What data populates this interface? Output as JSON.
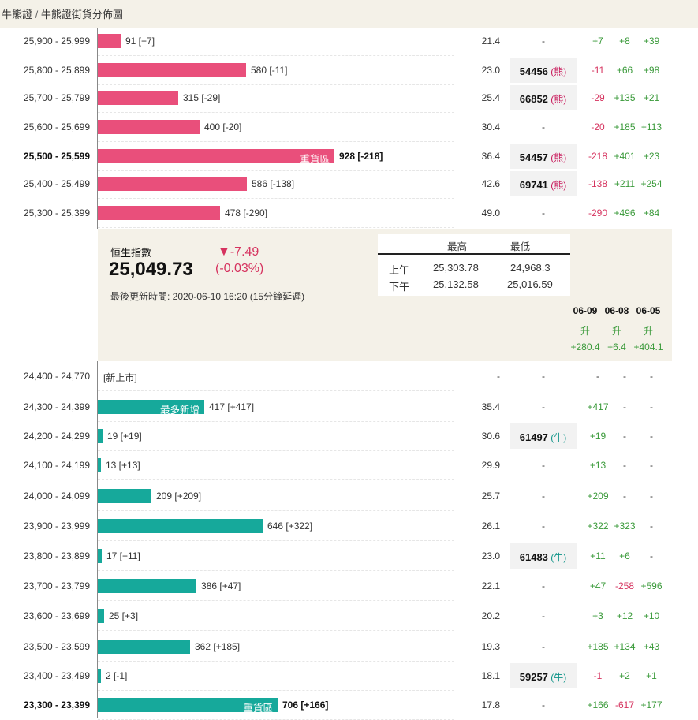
{
  "breadcrumb": {
    "part1": "牛熊證",
    "sep": "/",
    "part2": "牛熊證街貨分佈圖"
  },
  "colors": {
    "bear": "#e94f7b",
    "bull": "#16a99b",
    "positive": "#3a9a3a",
    "negative": "#d6335f",
    "panel": "#f4f1e8"
  },
  "bear_rows": [
    {
      "range": "25,900 - 25,999",
      "amount": 91,
      "count_label": "91 [+7]",
      "bar_text": "",
      "bold": false,
      "value": "21.4",
      "code": "-",
      "code_type": "",
      "c1": "+7",
      "c2": "+8",
      "c3": "+39"
    },
    {
      "range": "25,800 - 25,899",
      "amount": 580,
      "count_label": "580 [-11]",
      "bar_text": "",
      "bold": false,
      "value": "23.0",
      "code": "54456",
      "code_type": "熊",
      "c1": "-11",
      "c2": "+66",
      "c3": "+98"
    },
    {
      "range": "25,700 - 25,799",
      "amount": 315,
      "count_label": "315 [-29]",
      "bar_text": "",
      "bold": false,
      "value": "25.4",
      "code": "66852",
      "code_type": "熊",
      "c1": "-29",
      "c2": "+135",
      "c3": "+21"
    },
    {
      "range": "25,600 - 25,699",
      "amount": 400,
      "count_label": "400 [-20]",
      "bar_text": "",
      "bold": false,
      "value": "30.4",
      "code": "-",
      "code_type": "",
      "c1": "-20",
      "c2": "+185",
      "c3": "+113"
    },
    {
      "range": "25,500 - 25,599",
      "amount": 928,
      "count_label": "928 [-218]",
      "bar_text": "重貨區",
      "bold": true,
      "value": "36.4",
      "code": "54457",
      "code_type": "熊",
      "c1": "-218",
      "c2": "+401",
      "c3": "+23"
    },
    {
      "range": "25,400 - 25,499",
      "amount": 586,
      "count_label": "586 [-138]",
      "bar_text": "",
      "bold": false,
      "value": "42.6",
      "code": "69741",
      "code_type": "熊",
      "c1": "-138",
      "c2": "+211",
      "c3": "+254"
    },
    {
      "range": "25,300 - 25,399",
      "amount": 478,
      "count_label": "478 [-290]",
      "bar_text": "",
      "bold": false,
      "value": "49.0",
      "code": "-",
      "code_type": "",
      "c1": "-290",
      "c2": "+496",
      "c3": "+84"
    }
  ],
  "index_panel": {
    "name": "恒生指數",
    "value": "25,049.73",
    "change": "▼-7.49",
    "change_pct": "(-0.03%)",
    "updated": "最後更新時間: 2020-06-10 16:20 (15分鐘延遲)",
    "hl_header_high": "最高",
    "hl_header_low": "最低",
    "am_label": "上午",
    "am_high": "25,303.78",
    "am_low": "24,968.3",
    "pm_label": "下午",
    "pm_high": "25,132.58",
    "pm_low": "25,016.59",
    "dates": [
      "06-09",
      "06-08",
      "06-05"
    ],
    "trend": [
      "升",
      "升",
      "升"
    ],
    "trend_vals": [
      "+280.4",
      "+6.4",
      "+404.1"
    ]
  },
  "bull_rows": [
    {
      "range": "24,400 - 24,770",
      "amount": 0,
      "count_label": "[新上市]",
      "bar_text": "",
      "bold": false,
      "value": "-",
      "code": "-",
      "code_type": "",
      "c1": "-",
      "c2": "-",
      "c3": "-"
    },
    {
      "range": "24,300 - 24,399",
      "amount": 417,
      "count_label": "417 [+417]",
      "bar_text": "最多新增",
      "bold": false,
      "value": "35.4",
      "code": "-",
      "code_type": "",
      "c1": "+417",
      "c2": "-",
      "c3": "-"
    },
    {
      "range": "24,200 - 24,299",
      "amount": 19,
      "count_label": "19 [+19]",
      "bar_text": "",
      "bold": false,
      "value": "30.6",
      "code": "61497",
      "code_type": "牛",
      "c1": "+19",
      "c2": "-",
      "c3": "-"
    },
    {
      "range": "24,100 - 24,199",
      "amount": 13,
      "count_label": "13 [+13]",
      "bar_text": "",
      "bold": false,
      "value": "29.9",
      "code": "-",
      "code_type": "",
      "c1": "+13",
      "c2": "-",
      "c3": "-"
    },
    {
      "range": "24,000 - 24,099",
      "amount": 209,
      "count_label": "209 [+209]",
      "bar_text": "",
      "bold": false,
      "value": "25.7",
      "code": "-",
      "code_type": "",
      "c1": "+209",
      "c2": "-",
      "c3": "-"
    },
    {
      "range": "23,900 - 23,999",
      "amount": 646,
      "count_label": "646 [+322]",
      "bar_text": "",
      "bold": false,
      "value": "26.1",
      "code": "-",
      "code_type": "",
      "c1": "+322",
      "c2": "+323",
      "c3": "-"
    },
    {
      "range": "23,800 - 23,899",
      "amount": 17,
      "count_label": "17 [+11]",
      "bar_text": "",
      "bold": false,
      "value": "23.0",
      "code": "61483",
      "code_type": "牛",
      "c1": "+11",
      "c2": "+6",
      "c3": "-"
    },
    {
      "range": "23,700 - 23,799",
      "amount": 386,
      "count_label": "386 [+47]",
      "bar_text": "",
      "bold": false,
      "value": "22.1",
      "code": "-",
      "code_type": "",
      "c1": "+47",
      "c2": "-258",
      "c3": "+596"
    },
    {
      "range": "23,600 - 23,699",
      "amount": 25,
      "count_label": "25 [+3]",
      "bar_text": "",
      "bold": false,
      "value": "20.2",
      "code": "-",
      "code_type": "",
      "c1": "+3",
      "c2": "+12",
      "c3": "+10"
    },
    {
      "range": "23,500 - 23,599",
      "amount": 362,
      "count_label": "362 [+185]",
      "bar_text": "",
      "bold": false,
      "value": "19.3",
      "code": "-",
      "code_type": "",
      "c1": "+185",
      "c2": "+134",
      "c3": "+43"
    },
    {
      "range": "23,400 - 23,499",
      "amount": 2,
      "count_label": "2 [-1]",
      "bar_text": "",
      "bold": false,
      "value": "18.1",
      "code": "59257",
      "code_type": "牛",
      "c1": "-1",
      "c2": "+2",
      "c3": "+1"
    },
    {
      "range": "23,300 - 23,399",
      "amount": 706,
      "count_label": "706 [+166]",
      "bar_text": "重貨區",
      "bold": true,
      "value": "17.8",
      "code": "-",
      "code_type": "",
      "c1": "+166",
      "c2": "-617",
      "c3": "+177"
    }
  ]
}
